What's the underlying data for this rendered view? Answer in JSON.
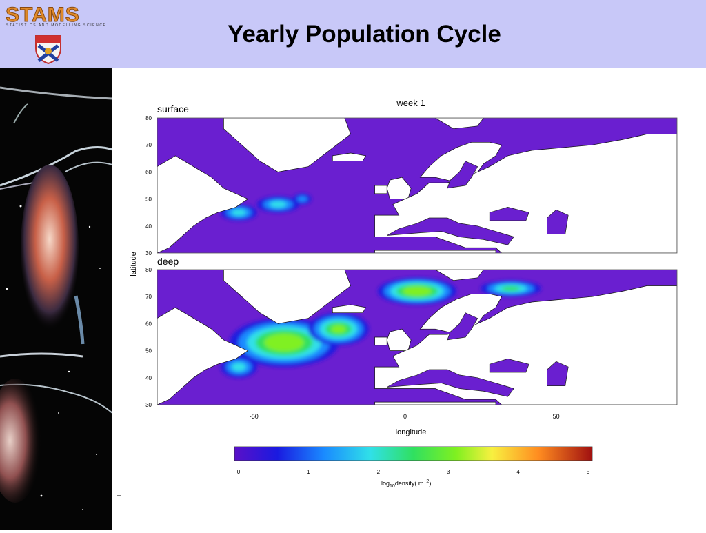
{
  "header": {
    "logo_text": "STAMS",
    "logo_subtitle": "STATISTICS AND MODELLING SCIENCE",
    "title": "Yearly Population Cycle"
  },
  "chart_data": {
    "type": "heatmap",
    "title": "week 1",
    "panels": [
      {
        "name": "surface",
        "blooms": [
          {
            "lon": -42,
            "lat": 48,
            "rlon": 7,
            "rlat": 3,
            "peak": 2.2
          },
          {
            "lon": -55,
            "lat": 45,
            "rlon": 6,
            "rlat": 3,
            "peak": 2.0
          },
          {
            "lon": -34,
            "lat": 50,
            "rlon": 3,
            "rlat": 2,
            "peak": 1.6
          }
        ]
      },
      {
        "name": "deep",
        "blooms": [
          {
            "lon": -40,
            "lat": 53,
            "rlon": 18,
            "rlat": 9,
            "peak": 3.8
          },
          {
            "lon": -22,
            "lat": 58,
            "rlon": 10,
            "rlat": 6,
            "peak": 3.3
          },
          {
            "lon": 4,
            "lat": 72,
            "rlon": 13,
            "rlat": 5,
            "peak": 3.5
          },
          {
            "lon": 35,
            "lat": 73,
            "rlon": 10,
            "rlat": 3,
            "peak": 3.0
          },
          {
            "lon": -55,
            "lat": 44,
            "rlon": 6,
            "rlat": 4,
            "peak": 2.4
          }
        ]
      }
    ],
    "xlabel": "longitude",
    "ylabel": "latitude",
    "xlim": [
      -82,
      90
    ],
    "ylim": [
      30,
      80
    ],
    "x_ticks": [
      "-50",
      "0",
      "50"
    ],
    "y_ticks": [
      "80",
      "70",
      "60",
      "50",
      "40",
      "30"
    ],
    "colorbar": {
      "ticks": [
        "0",
        "1",
        "2",
        "3",
        "4",
        "5"
      ],
      "label_prefix": "log",
      "label_sub": "10",
      "label_main": "density( m",
      "label_sup": "−2",
      "label_end": ")"
    },
    "colors": {
      "low": "#6a1fd0",
      "land": "#ffffff"
    }
  },
  "footer_mark": "–"
}
